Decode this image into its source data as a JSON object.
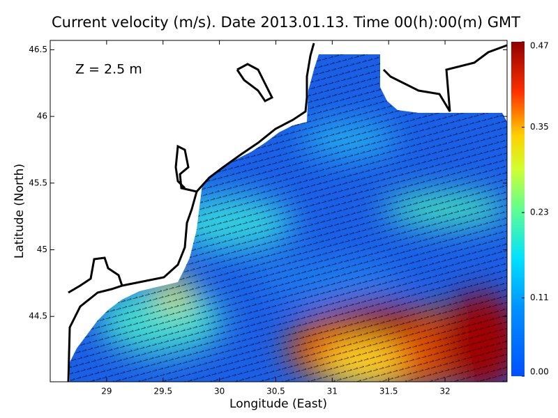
{
  "chart_data": {
    "type": "vector-field",
    "title": "Current velocity (m/s). Date 2013.01.13. Time 00(h):00(m) GMT",
    "annotation": "Z = 2.5 m",
    "x_label": "Longitude (East)",
    "y_label": "Latitude (North)",
    "xlim": [
      28.5,
      32.55
    ],
    "xticks": [
      29,
      29.5,
      30,
      30.5,
      31,
      31.5,
      32
    ],
    "ylim": [
      44.01,
      46.57
    ],
    "yticks": [
      44.5,
      45,
      45.5,
      46,
      46.5
    ],
    "colorbar": {
      "lim": [
        0,
        0.47
      ],
      "ticks": [
        {
          "value": 0,
          "label": "0.00"
        },
        0.11,
        0.23,
        0.35,
        0.47
      ]
    }
  }
}
